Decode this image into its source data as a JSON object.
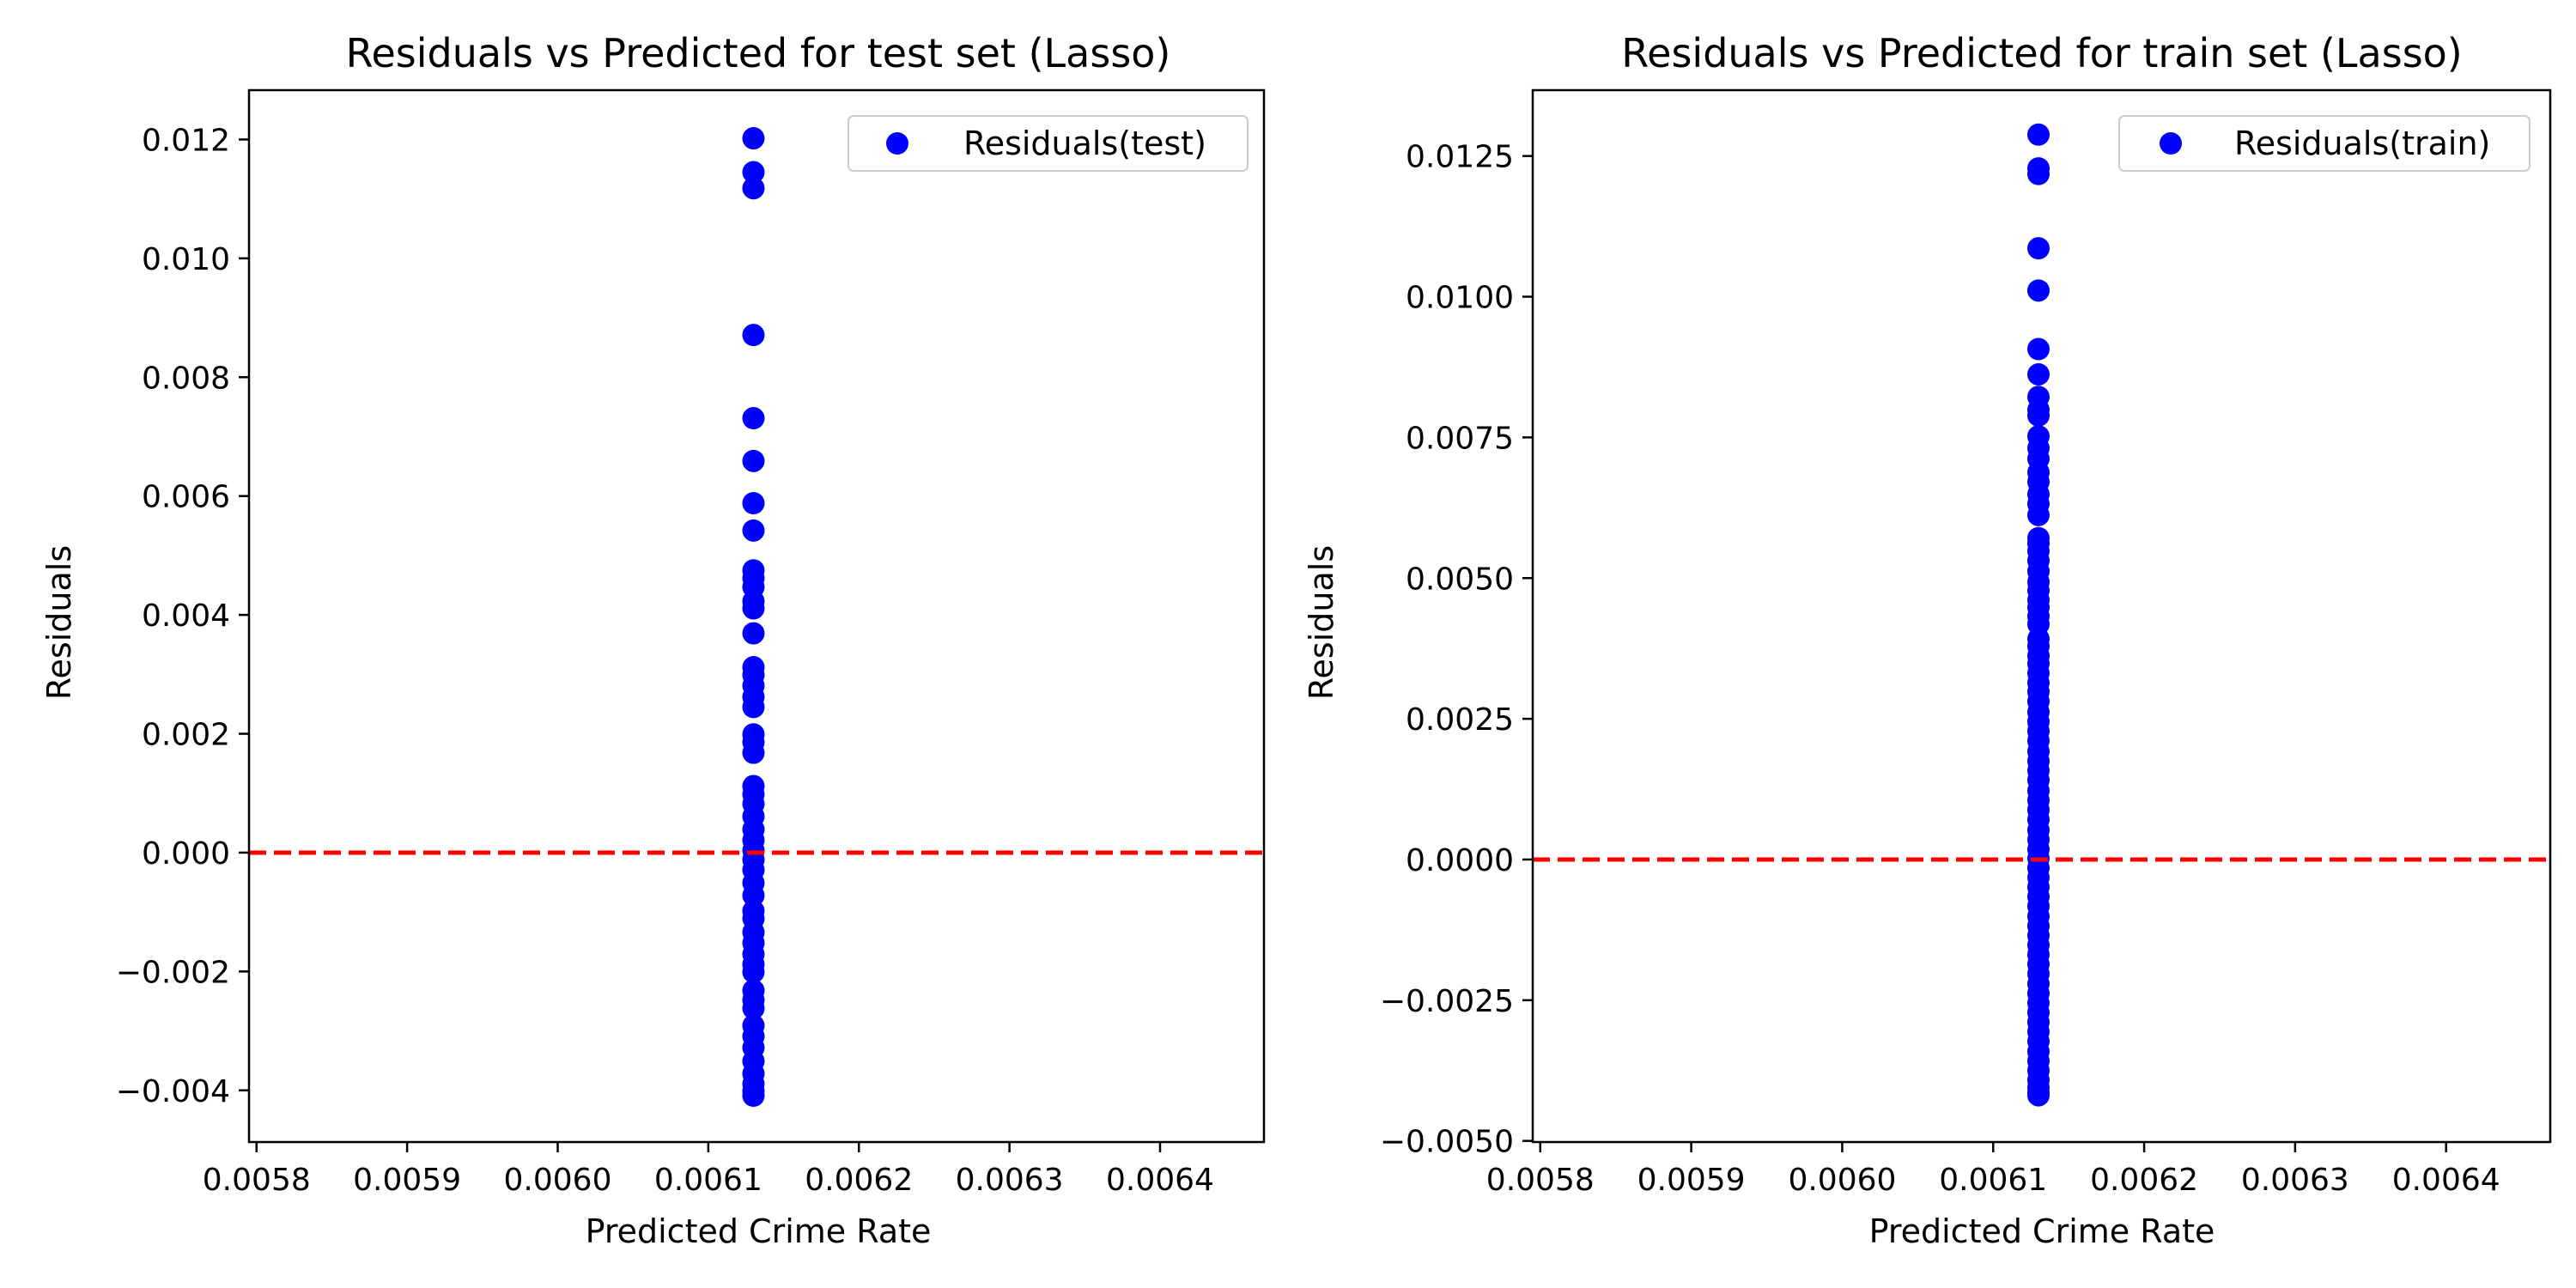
{
  "figure": {
    "background": "#ffffff"
  },
  "chart_data": [
    {
      "type": "scatter",
      "title": "Residuals vs Predicted for test set (Lasso)",
      "xlabel": "Predicted Crime Rate",
      "ylabel": "Residuals",
      "xlim": [
        0.005795,
        0.006469
      ],
      "ylim": [
        -0.00487,
        0.01283
      ],
      "xticks": [
        0.0058,
        0.0059,
        0.006,
        0.0061,
        0.0062,
        0.0063,
        0.0064
      ],
      "xtick_labels": [
        "0.0058",
        "0.0059",
        "0.0060",
        "0.0061",
        "0.0062",
        "0.0063",
        "0.0064"
      ],
      "yticks": [
        -0.004,
        -0.002,
        0.0,
        0.002,
        0.004,
        0.006,
        0.008,
        0.01,
        0.012
      ],
      "ytick_labels": [
        "−0.004",
        "−0.002",
        "0.000",
        "0.002",
        "0.004",
        "0.006",
        "0.008",
        "0.010",
        "0.012"
      ],
      "grid": false,
      "legend": {
        "position": "top-right"
      },
      "reference_line": {
        "y": 0,
        "style": "dashed",
        "color": "#ff0000"
      },
      "series": [
        {
          "name": "Residuals(test)",
          "color": "#0000ff",
          "x": 0.00613,
          "y": [
            0.01202,
            0.01145,
            0.01118,
            0.00871,
            0.00731,
            0.00659,
            0.00588,
            0.00542,
            0.00475,
            0.00462,
            0.00447,
            0.00423,
            0.00411,
            0.00369,
            0.00312,
            0.00299,
            0.00281,
            0.00262,
            0.00245,
            0.00199,
            0.00186,
            0.00168,
            0.00112,
            0.00098,
            0.00082,
            0.00061,
            0.00039,
            0.00021,
            4e-05,
            -0.00012,
            -0.00029,
            -0.00051,
            -0.00072,
            -0.00098,
            -0.00111,
            -0.00134,
            -0.00152,
            -0.00171,
            -0.00188,
            -0.00201,
            -0.00232,
            -0.00248,
            -0.00262,
            -0.00291,
            -0.00309,
            -0.00328,
            -0.00351,
            -0.00372,
            -0.00389,
            -0.00401,
            -0.00409
          ]
        }
      ]
    },
    {
      "type": "scatter",
      "title": "Residuals vs Predicted for train set (Lasso)",
      "xlabel": "Predicted Crime Rate",
      "ylabel": "Residuals",
      "xlim": [
        0.005795,
        0.006469
      ],
      "ylim": [
        -0.00502,
        0.01367
      ],
      "xticks": [
        0.0058,
        0.0059,
        0.006,
        0.0061,
        0.0062,
        0.0063,
        0.0064
      ],
      "xtick_labels": [
        "0.0058",
        "0.0059",
        "0.0060",
        "0.0061",
        "0.0062",
        "0.0063",
        "0.0064"
      ],
      "yticks": [
        -0.005,
        -0.0025,
        0.0,
        0.0025,
        0.005,
        0.0075,
        0.01,
        0.0125
      ],
      "ytick_labels": [
        "−0.0050",
        "−0.0025",
        "0.0000",
        "0.0025",
        "0.0050",
        "0.0075",
        "0.0100",
        "0.0125"
      ],
      "grid": false,
      "legend": {
        "position": "top-right"
      },
      "reference_line": {
        "y": 0,
        "style": "dashed",
        "color": "#ff0000"
      },
      "series": [
        {
          "name": "Residuals(train)",
          "color": "#0000ff",
          "x": 0.00613,
          "y": [
            0.01288,
            0.01228,
            0.01218,
            0.01086,
            0.01011,
            0.00907,
            0.00862,
            0.00822,
            0.00799,
            0.00789,
            0.00752,
            0.00731,
            0.00712,
            0.00688,
            0.00671,
            0.00649,
            0.00632,
            0.00612,
            0.00571,
            0.00562,
            0.00548,
            0.00531,
            0.00512,
            0.00493,
            0.00478,
            0.00461,
            0.00448,
            0.00432,
            0.00418,
            0.00392,
            0.00379,
            0.00362,
            0.00348,
            0.00331,
            0.00314,
            0.00298,
            0.00281,
            0.00262,
            0.00245,
            0.00228,
            0.00211,
            0.00192,
            0.00175,
            0.00158,
            0.00141,
            0.00122,
            0.00105,
            0.00088,
            0.00071,
            0.00052,
            0.00035,
            0.00018,
            2e-05,
            -0.00015,
            -0.00032,
            -0.00049,
            -0.00066,
            -0.00083,
            -0.00101,
            -0.00118,
            -0.00135,
            -0.00152,
            -0.00169,
            -0.00186,
            -0.00203,
            -0.00221,
            -0.00238,
            -0.00255,
            -0.00272,
            -0.00289,
            -0.00306,
            -0.00323,
            -0.00341,
            -0.00358,
            -0.00375,
            -0.00392,
            -0.00405,
            -0.00414,
            -0.00419
          ]
        }
      ]
    }
  ]
}
